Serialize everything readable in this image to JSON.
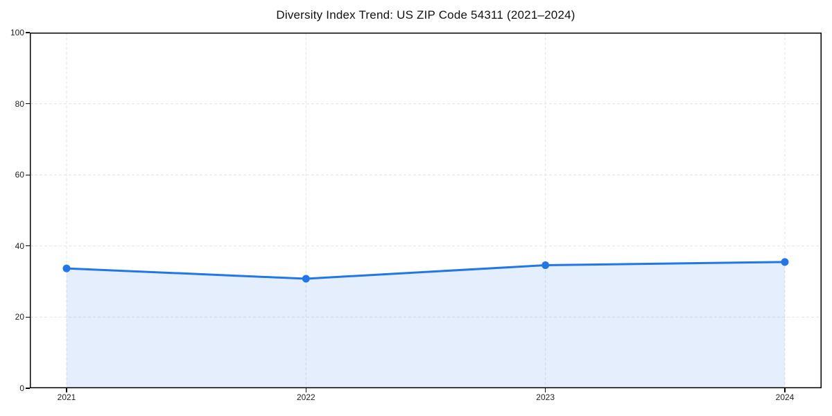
{
  "chart_data": {
    "type": "area",
    "title": "Diversity Index Trend: US ZIP Code 54311 (2021–2024)",
    "x": [
      "2021",
      "2022",
      "2023",
      "2024"
    ],
    "values": [
      33.7,
      30.8,
      34.6,
      35.5
    ],
    "xlabel": "",
    "ylabel": "",
    "ylim": [
      0,
      100
    ],
    "yticks": [
      0,
      20,
      40,
      60,
      80,
      100
    ],
    "grid": true,
    "legend": false,
    "marker": "circle",
    "colors": {
      "line": "#2176e8",
      "marker": "#2176e8",
      "fill": "rgba(33, 118, 232, 0.12)",
      "gridline": "#e4e4e4",
      "axis": "#000000",
      "background": "#ffffff",
      "tick_label": "#222222"
    }
  }
}
